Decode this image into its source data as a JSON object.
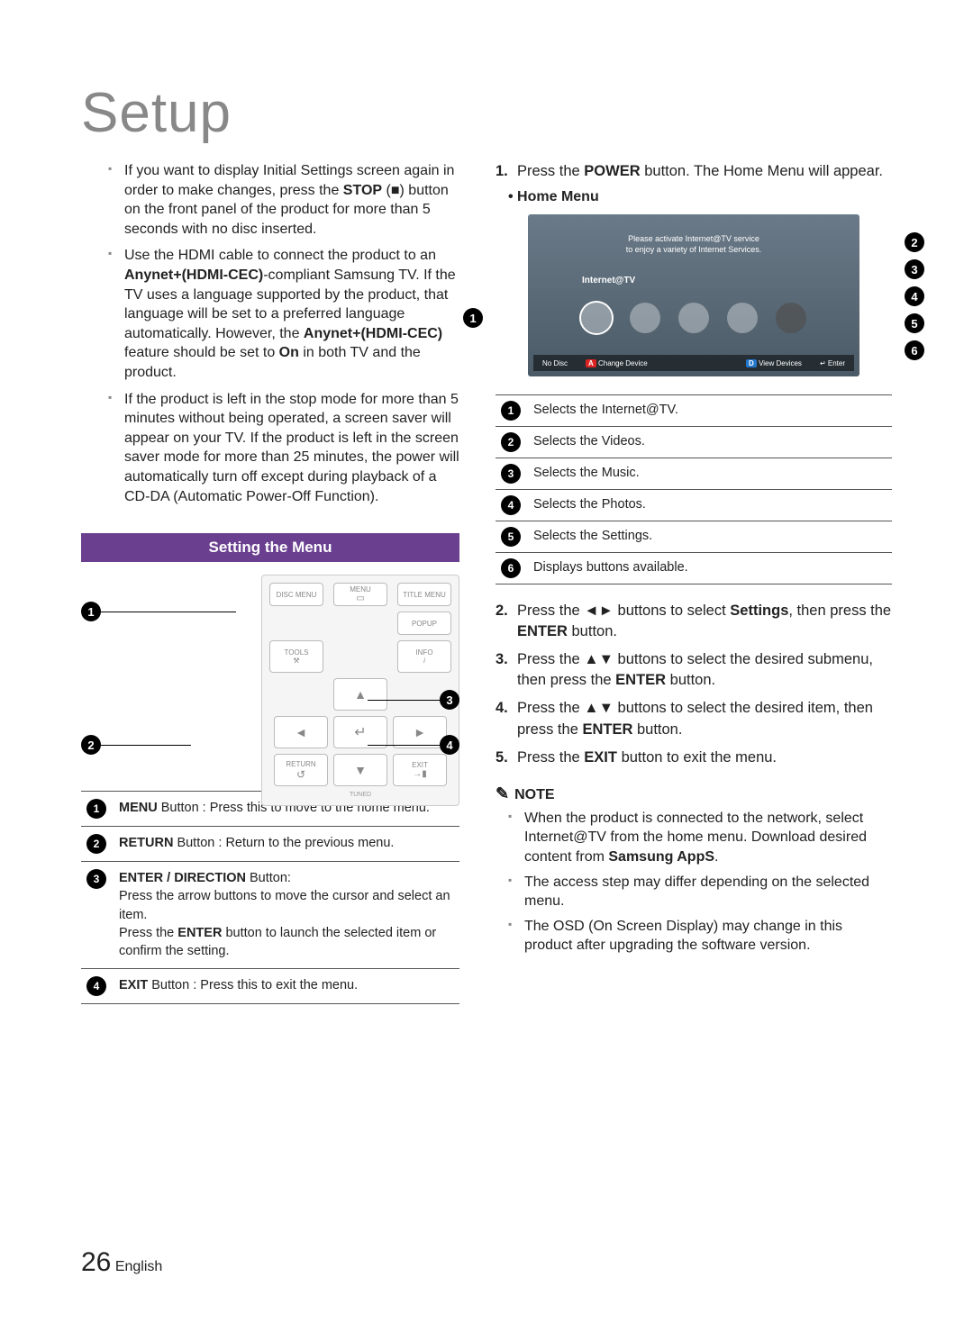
{
  "page": {
    "title": "Setup",
    "page_number": "26",
    "language": "English"
  },
  "left_bullets": [
    "If you want to display Initial Settings screen again in order to make changes, press the <b>STOP</b> (■) button on the front panel of the product for more than 5 seconds with no disc inserted.",
    "Use the HDMI cable to connect the product to an <b>Anynet+(HDMI-CEC)</b>-compliant Samsung TV. If the TV uses a language supported by the product, that language will be set to a preferred language automatically. However, the <b>Anynet+(HDMI-CEC)</b> feature should be set to <b>On</b> in both TV and the product.",
    "If the product is left in the stop mode for more than 5 minutes without being operated, a screen saver will appear on your TV. If the product is left in the screen saver mode for more than 25 minutes, the power will automatically turn off except during playback of a CD-DA (Automatic Power-Off Function)."
  ],
  "section_header": "Setting the Menu",
  "remote": {
    "top_row": [
      "DISC MENU",
      "MENU",
      "TITLE MENU"
    ],
    "row2_right": "POPUP",
    "row3": [
      "TOOLS",
      "INFO"
    ],
    "dpad_center": "↵",
    "bottom": [
      "RETURN",
      "EXIT"
    ],
    "footer": "TUNED"
  },
  "remote_defs": [
    "<b>MENU</b> Button : Press this to move to the home menu.",
    "<b>RETURN</b> Button : Return to the previous menu.",
    "<b>ENTER / DIRECTION</b> Button:<br>Press the arrow buttons to move the cursor and select an item.<br>Press the <b>ENTER</b> button to launch the selected item or confirm the setting.",
    "<b>EXIT</b> Button : Press this to exit the menu."
  ],
  "steps": [
    "Press the <b>POWER</b> button. The Home Menu will appear.",
    "Press the ◄► buttons to select <b>Settings</b>, then press the <b>ENTER</b> button.",
    "Press the ▲▼ buttons to select the desired submenu, then press the <b>ENTER</b> button.",
    "Press the ▲▼ buttons to select the desired item, then press the <b>ENTER</b> button.",
    "Press the <b>EXIT</b> button to exit the menu."
  ],
  "home_menu_label": "• Home Menu",
  "tv": {
    "banner1": "Please activate Internet@TV service",
    "banner2": "to enjoy a variety of Internet Services.",
    "label": "Internet@TV",
    "bottombar": {
      "left": "No Disc",
      "a": "Change Device",
      "d": "View Devices",
      "enter": "Enter"
    }
  },
  "home_defs": [
    "Selects the Internet@TV.",
    "Selects the Videos.",
    "Selects the Music.",
    "Selects the Photos.",
    "Selects the Settings.",
    "Displays buttons available."
  ],
  "note_label": "NOTE",
  "notes": [
    "When the product is connected to the network, select Internet@TV from the home menu. Download desired content from <b>Samsung AppS</b>.",
    "The access step may differ depending on the selected menu.",
    "The OSD (On Screen Display) may change in this product after upgrading the software version."
  ]
}
